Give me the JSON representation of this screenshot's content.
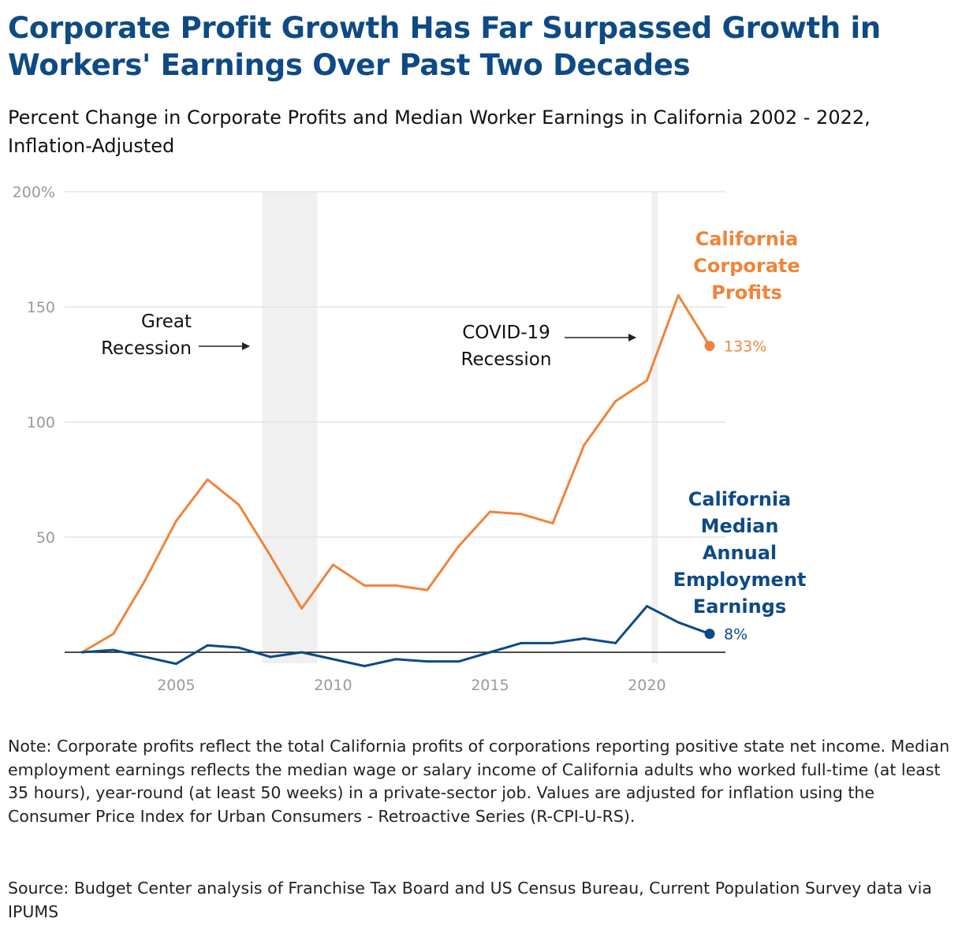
{
  "header": {
    "title": "Corporate Profit Growth Has Far Surpassed Growth in Workers' Earnings Over Past Two Decades",
    "subtitle": "Percent Change in Corporate Profits and Median Worker Earnings in California 2002 - 2022, Inflation-Adjusted"
  },
  "footer": {
    "note": "Note: Corporate profits reflect the total California profits of corporations reporting positive state net income. Median employment earnings reflects the median wage or salary income of California adults who worked full-time (at least 35 hours), year-round (at least 50 weeks) in a private-sector job. Values are adjusted for inflation using the Consumer Price Index for Urban Consumers - Retroactive Series (R-CPI-U-RS).",
    "source": "Source: Budget Center analysis of Franchise Tax Board and US Census Bureau, Current Population Survey data via IPUMS"
  },
  "chart_data": {
    "type": "line",
    "title": "Corporate Profit Growth Has Far Surpassed Growth in Workers' Earnings Over Past Two Decades",
    "subtitle": "Percent Change in Corporate Profits and Median Worker Earnings in California 2002 - 2022, Inflation-Adjusted",
    "xlabel": "",
    "ylabel": "",
    "xlim": [
      2001.5,
      2022.5
    ],
    "ylim": [
      0,
      200
    ],
    "x_ticks": [
      2005,
      2010,
      2015,
      2020
    ],
    "x_tick_labels": [
      "2005",
      "2010",
      "2015",
      "2020"
    ],
    "y_ticks": [
      50,
      100,
      150,
      200
    ],
    "y_tick_labels": [
      "50",
      "100",
      "150",
      "200%"
    ],
    "grid": true,
    "x": [
      2002,
      2003,
      2004,
      2005,
      2006,
      2007,
      2008,
      2009,
      2010,
      2011,
      2012,
      2013,
      2014,
      2015,
      2016,
      2017,
      2018,
      2019,
      2020,
      2021,
      2022
    ],
    "series": [
      {
        "name": "California Corporate Profits",
        "label_lines": [
          "California",
          "Corporate",
          "Profits"
        ],
        "color": "#f0843a",
        "values": [
          0,
          8,
          31,
          57,
          75,
          64,
          42,
          19,
          38,
          29,
          29,
          27,
          46,
          61,
          60,
          56,
          90,
          109,
          118,
          155,
          133
        ],
        "end_label": "133%"
      },
      {
        "name": "California Median Annual Employment Earnings",
        "label_lines": [
          "California",
          "Median",
          "Annual",
          "Employment",
          "Earnings"
        ],
        "color": "#0e4a85",
        "values": [
          0,
          1,
          -2,
          -5,
          3,
          2,
          -2,
          0,
          -3,
          -6,
          -3,
          -4,
          -4,
          0,
          4,
          4,
          6,
          4,
          20,
          13,
          8
        ],
        "end_label": "8%"
      }
    ],
    "shaded_periods": [
      {
        "name": "Great Recession",
        "start": 2007.75,
        "end": 2009.5,
        "color": "#f0f0f0"
      },
      {
        "name": "COVID-19 Recession",
        "start": 2020.15,
        "end": 2020.35,
        "color": "#f0f0f0"
      }
    ],
    "annotations": [
      {
        "name": "great-recession",
        "lines": [
          "Great",
          "Recession"
        ]
      },
      {
        "name": "covid-recession",
        "lines": [
          "COVID-19",
          "Recession"
        ]
      }
    ]
  }
}
